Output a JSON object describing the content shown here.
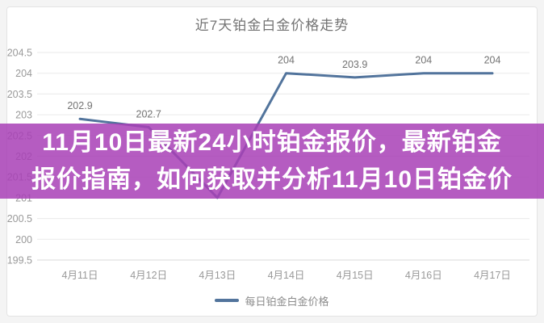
{
  "page": {
    "background": "#f4f4f4",
    "card_background": "#ffffff"
  },
  "chart_data": {
    "type": "line",
    "title": "近7天铂金白金价格走势",
    "categories": [
      "4月11日",
      "4月12日",
      "4月13日",
      "4月14日",
      "4月15日",
      "4月16日",
      "4月17日"
    ],
    "series": [
      {
        "name": "每日铂金白金价格",
        "values": [
          202.9,
          202.7,
          201.0,
          204,
          203.9,
          204,
          204
        ]
      }
    ],
    "point_labels": [
      "202.9",
      "202.7",
      "",
      "204",
      "203.9",
      "204",
      "204"
    ],
    "yticks": [
      "204.5",
      "204",
      "203.5",
      "203",
      "202.5",
      "202",
      "201.5",
      "201",
      "200.5",
      "200",
      "199.5"
    ],
    "ylim": [
      199.5,
      204.5
    ],
    "xlabel": "",
    "ylabel": "",
    "grid": true,
    "legend_position": "bottom",
    "line_color": "#52749c",
    "grid_color": "#eaeaea",
    "axis_line_color": "#d8d8d8",
    "tick_label_color": "#999999",
    "point_label_color": "#737373"
  },
  "legend": {
    "label": "每日铂金白金价格"
  },
  "banner": {
    "line1": "11月10日最新24小时铂金报价，最新铂金",
    "line2": "报价指南，如何获取并分析11月10日铂金价",
    "background_rgba": "rgba(168,64,182,0.85)",
    "text_color": "#ffffff"
  }
}
